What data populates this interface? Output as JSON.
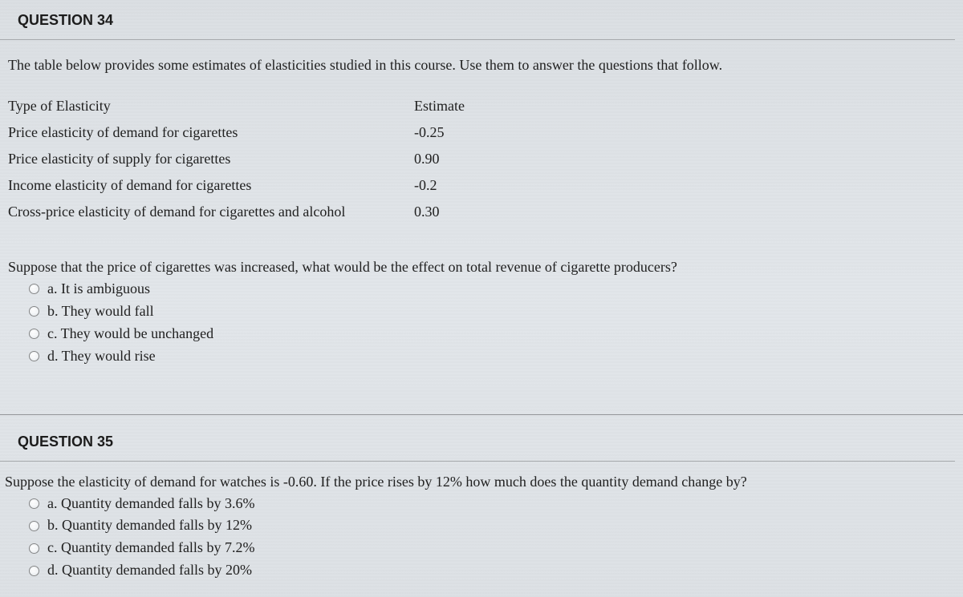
{
  "q34": {
    "header": "QUESTION 34",
    "intro": "The table below provides some estimates of elasticities studied in this course. Use them to answer the questions that follow.",
    "table": {
      "col1_header": "Type of Elasticity",
      "col2_header": "Estimate",
      "rows": [
        {
          "label": "Price elasticity of demand for cigarettes",
          "value": "-0.25"
        },
        {
          "label": "Price elasticity of supply for cigarettes",
          "value": "0.90"
        },
        {
          "label": "Income elasticity of demand for cigarettes",
          "value": "-0.2"
        },
        {
          "label": "Cross-price elasticity of demand for cigarettes and alcohol",
          "value": "0.30"
        }
      ]
    },
    "prompt": "Suppose that the price of cigarettes was increased, what would be the effect on total revenue of cigarette producers?",
    "options": {
      "a": "a. It is ambiguous",
      "b": "b. They would fall",
      "c": "c. They would be unchanged",
      "d": "d. They would rise"
    }
  },
  "q35": {
    "header": "QUESTION 35",
    "prompt": "Suppose the elasticity of demand for watches is -0.60.  If the price rises by 12% how much does the quantity demand change by?",
    "options": {
      "a": "a. Quantity demanded falls by 3.6%",
      "b": "b. Quantity demanded falls by 12%",
      "c": "c. Quantity demanded falls by 7.2%",
      "d": "d. Quantity demanded falls by 20%"
    }
  }
}
